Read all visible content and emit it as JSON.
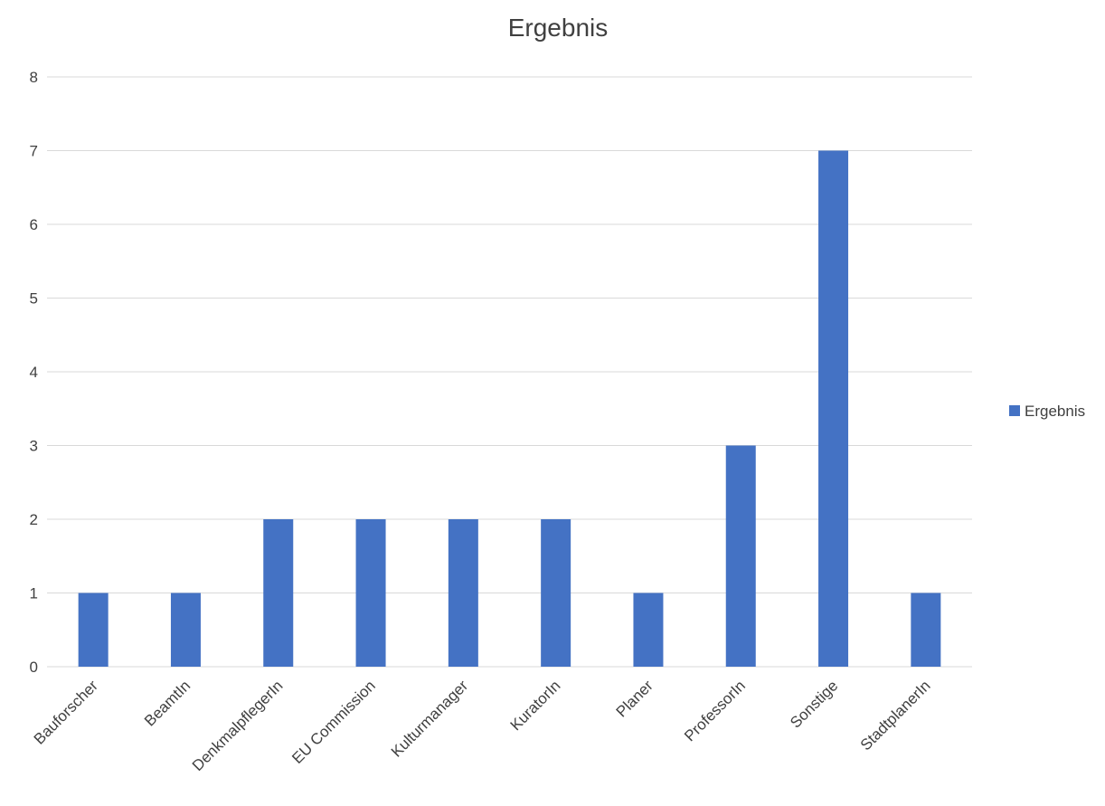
{
  "chart_data": {
    "type": "bar",
    "title": "Ergebnis",
    "xlabel": "",
    "ylabel": "",
    "categories": [
      "Bauforscher",
      "BeamtIn",
      "DenkmalpflegerIn",
      "EU Commission",
      "Kulturmanager",
      "KuratorIn",
      "Planer",
      "ProfessorIn",
      "Sonstige",
      "StadtplanerIn"
    ],
    "series": [
      {
        "name": "Ergebnis",
        "values": [
          1,
          1,
          2,
          2,
          2,
          2,
          1,
          3,
          7,
          1
        ],
        "color": "#4472c4"
      }
    ],
    "ylim": [
      0,
      8
    ],
    "yticks": [
      0,
      1,
      2,
      3,
      4,
      5,
      6,
      7,
      8
    ],
    "grid": true,
    "legend_position": "right"
  }
}
